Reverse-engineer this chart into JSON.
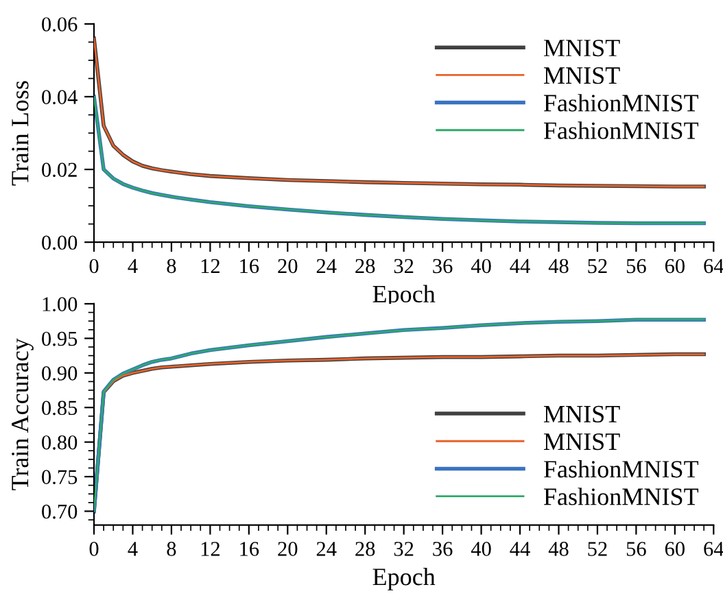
{
  "chart_data": [
    {
      "type": "line",
      "xlabel": "Epoch",
      "ylabel": "Train Loss",
      "x": [
        0,
        1,
        2,
        3,
        4,
        5,
        6,
        7,
        8,
        10,
        12,
        16,
        20,
        24,
        28,
        32,
        36,
        40,
        44,
        48,
        52,
        56,
        60,
        63
      ],
      "xlim": [
        0,
        64
      ],
      "xticks": [
        0,
        4,
        8,
        12,
        16,
        20,
        24,
        28,
        32,
        36,
        40,
        44,
        48,
        52,
        56,
        60,
        64
      ],
      "ylim": [
        0,
        0.06
      ],
      "yticks": [
        {
          "value": 0,
          "label": "0.00"
        },
        {
          "value": 0.02,
          "label": "0.02"
        },
        {
          "value": 0.04,
          "label": "0.04"
        },
        {
          "value": 0.06,
          "label": "0.06"
        }
      ],
      "legend": "top right",
      "grid": false,
      "series": [
        {
          "name": "MNIST",
          "color": "#404040",
          "values": [
            0.056,
            0.032,
            0.0265,
            0.024,
            0.0222,
            0.021,
            0.0203,
            0.0198,
            0.0194,
            0.0187,
            0.0182,
            0.0176,
            0.0171,
            0.0168,
            0.0165,
            0.0163,
            0.0161,
            0.0159,
            0.0158,
            0.0156,
            0.0155,
            0.0154,
            0.0153,
            0.0153
          ]
        },
        {
          "name": "MNIST",
          "color": "#e8622a",
          "values": [
            0.056,
            0.032,
            0.0265,
            0.024,
            0.0222,
            0.021,
            0.0203,
            0.0198,
            0.0194,
            0.0187,
            0.0182,
            0.0176,
            0.0171,
            0.0168,
            0.0165,
            0.0163,
            0.0161,
            0.0159,
            0.0158,
            0.0156,
            0.0155,
            0.0154,
            0.0153,
            0.0153
          ]
        },
        {
          "name": "FashionMNIST",
          "color": "#3a73c0",
          "values": [
            0.04,
            0.02,
            0.0175,
            0.016,
            0.015,
            0.0142,
            0.0135,
            0.013,
            0.0125,
            0.0117,
            0.011,
            0.0099,
            0.009,
            0.0082,
            0.0075,
            0.0069,
            0.0064,
            0.006,
            0.0057,
            0.0055,
            0.0053,
            0.0052,
            0.0052,
            0.0052
          ]
        },
        {
          "name": "FashionMNIST",
          "color": "#2eaa6a",
          "values": [
            0.04,
            0.02,
            0.0175,
            0.016,
            0.015,
            0.0142,
            0.0135,
            0.013,
            0.0125,
            0.0117,
            0.011,
            0.0099,
            0.009,
            0.0082,
            0.0075,
            0.0069,
            0.0064,
            0.006,
            0.0057,
            0.0055,
            0.0053,
            0.0052,
            0.0052,
            0.0052
          ]
        }
      ]
    },
    {
      "type": "line",
      "xlabel": "Epoch",
      "ylabel": "Train Accuracy",
      "x": [
        0,
        1,
        2,
        3,
        4,
        5,
        6,
        7,
        8,
        10,
        12,
        16,
        20,
        24,
        28,
        32,
        36,
        40,
        44,
        48,
        52,
        56,
        60,
        63
      ],
      "xlim": [
        0,
        64
      ],
      "xticks": [
        0,
        4,
        8,
        12,
        16,
        20,
        24,
        28,
        32,
        36,
        40,
        44,
        48,
        52,
        56,
        60,
        64
      ],
      "ylim": [
        0.68,
        1.0
      ],
      "yticks": [
        {
          "value": 0.7,
          "label": "0.70"
        },
        {
          "value": 0.75,
          "label": "0.75"
        },
        {
          "value": 0.8,
          "label": "0.80"
        },
        {
          "value": 0.85,
          "label": "0.85"
        },
        {
          "value": 0.9,
          "label": "0.90"
        },
        {
          "value": 0.95,
          "label": "0.95"
        },
        {
          "value": 1.0,
          "label": "1.00"
        }
      ],
      "legend": "bottom right",
      "grid": false,
      "series": [
        {
          "name": "MNIST",
          "color": "#404040",
          "values": [
            0.7,
            0.872,
            0.888,
            0.896,
            0.9,
            0.903,
            0.906,
            0.908,
            0.909,
            0.911,
            0.913,
            0.916,
            0.918,
            0.919,
            0.921,
            0.922,
            0.923,
            0.923,
            0.924,
            0.925,
            0.925,
            0.926,
            0.927,
            0.927
          ]
        },
        {
          "name": "MNIST",
          "color": "#e8622a",
          "values": [
            null,
            0.872,
            0.888,
            0.896,
            0.9,
            0.903,
            0.906,
            0.908,
            0.909,
            0.911,
            0.913,
            0.916,
            0.918,
            0.919,
            0.921,
            0.922,
            0.923,
            0.923,
            0.924,
            0.925,
            0.925,
            0.926,
            0.927,
            0.927
          ]
        },
        {
          "name": "FashionMNIST",
          "color": "#3a73c0",
          "values": [
            0.7,
            0.873,
            0.89,
            0.899,
            0.905,
            0.911,
            0.916,
            0.919,
            0.921,
            0.928,
            0.933,
            0.94,
            0.946,
            0.952,
            0.957,
            0.962,
            0.965,
            0.969,
            0.972,
            0.974,
            0.975,
            0.977,
            0.977,
            0.977
          ]
        },
        {
          "name": "FashionMNIST",
          "color": "#2eaa6a",
          "values": [
            0.7,
            0.873,
            0.89,
            0.899,
            0.905,
            0.911,
            0.916,
            0.919,
            0.921,
            0.928,
            0.933,
            0.94,
            0.946,
            0.952,
            0.957,
            0.962,
            0.965,
            0.969,
            0.972,
            0.974,
            0.975,
            0.977,
            0.977,
            0.977
          ]
        }
      ]
    }
  ]
}
